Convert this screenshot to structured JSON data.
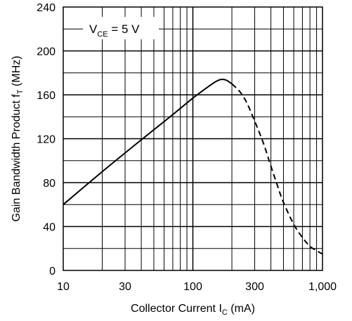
{
  "chart_data": {
    "type": "line",
    "title": "",
    "x_axis": {
      "label": "Collector Current",
      "symbol": "I",
      "symbol_sub": "C",
      "unit": "(mA)",
      "scale": "log",
      "range": [
        10,
        1000
      ],
      "tick_values": [
        10,
        30,
        100,
        300,
        1000
      ],
      "tick_labels": [
        "10",
        "30",
        "100",
        "300",
        "1,000"
      ]
    },
    "y_axis": {
      "label": "Gain Bandwidth Product",
      "symbol": "f",
      "symbol_sub": "T",
      "unit": "(MHz)",
      "scale": "linear",
      "range": [
        0,
        240
      ],
      "tick_values": [
        0,
        40,
        80,
        120,
        160,
        200,
        240
      ],
      "tick_labels": [
        "0",
        "40",
        "80",
        "120",
        "160",
        "200",
        "240"
      ]
    },
    "grid": true,
    "annotation": {
      "symbol": "V",
      "symbol_sub": "CE",
      "text": " = 5 V"
    },
    "series": [
      {
        "style": "solid",
        "color": "#000000",
        "points": [
          [
            10,
            60
          ],
          [
            20,
            90
          ],
          [
            40,
            119
          ],
          [
            70,
            142
          ],
          [
            100,
            157
          ],
          [
            130,
            167
          ],
          [
            150,
            172
          ],
          [
            165,
            174
          ],
          [
            180,
            173.5
          ],
          [
            200,
            170
          ]
        ]
      },
      {
        "style": "dashed",
        "color": "#000000",
        "points": [
          [
            200,
            170
          ],
          [
            230,
            163
          ],
          [
            260,
            153
          ],
          [
            300,
            136
          ],
          [
            350,
            116
          ],
          [
            400,
            95
          ],
          [
            450,
            77
          ],
          [
            500,
            62
          ],
          [
            600,
            42
          ],
          [
            700,
            30
          ],
          [
            800,
            22
          ],
          [
            900,
            18
          ],
          [
            1000,
            15
          ]
        ]
      }
    ]
  }
}
